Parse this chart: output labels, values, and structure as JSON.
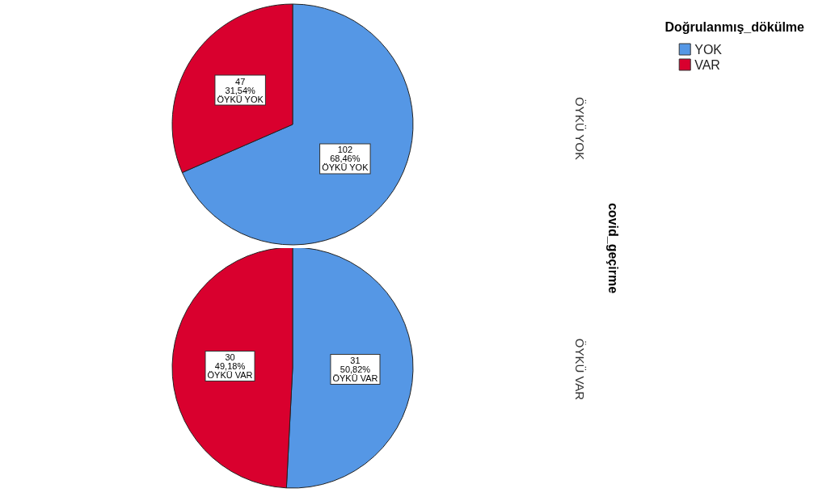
{
  "chart_data": [
    {
      "type": "pie",
      "subtitle": "ÖYKÜ YOK",
      "legend_title": "Doğrulanmış_dökülme",
      "legend": "top right",
      "annotations": [
        "covid_geçirme"
      ],
      "categories": [
        "YOK",
        "VAR"
      ],
      "values": [
        102,
        47
      ],
      "colors": [
        "#5597e5",
        "#d9002e"
      ],
      "value_labels": [
        "102\n68,46%\nÖYKÜ YOK",
        "47\n31,54%\nÖYKÜ YOK"
      ]
    },
    {
      "type": "pie",
      "subtitle": "ÖYKÜ VAR",
      "categories": [
        null,
        null
      ],
      "values": [
        31,
        30
      ],
      "colors": [
        "#5597e5",
        "#d9002e"
      ],
      "value_labels": [
        "31\n50,82%\nÖYKÜ VAR",
        "30\n49,18%\nÖYKÜ VAR"
      ]
    }
  ]
}
